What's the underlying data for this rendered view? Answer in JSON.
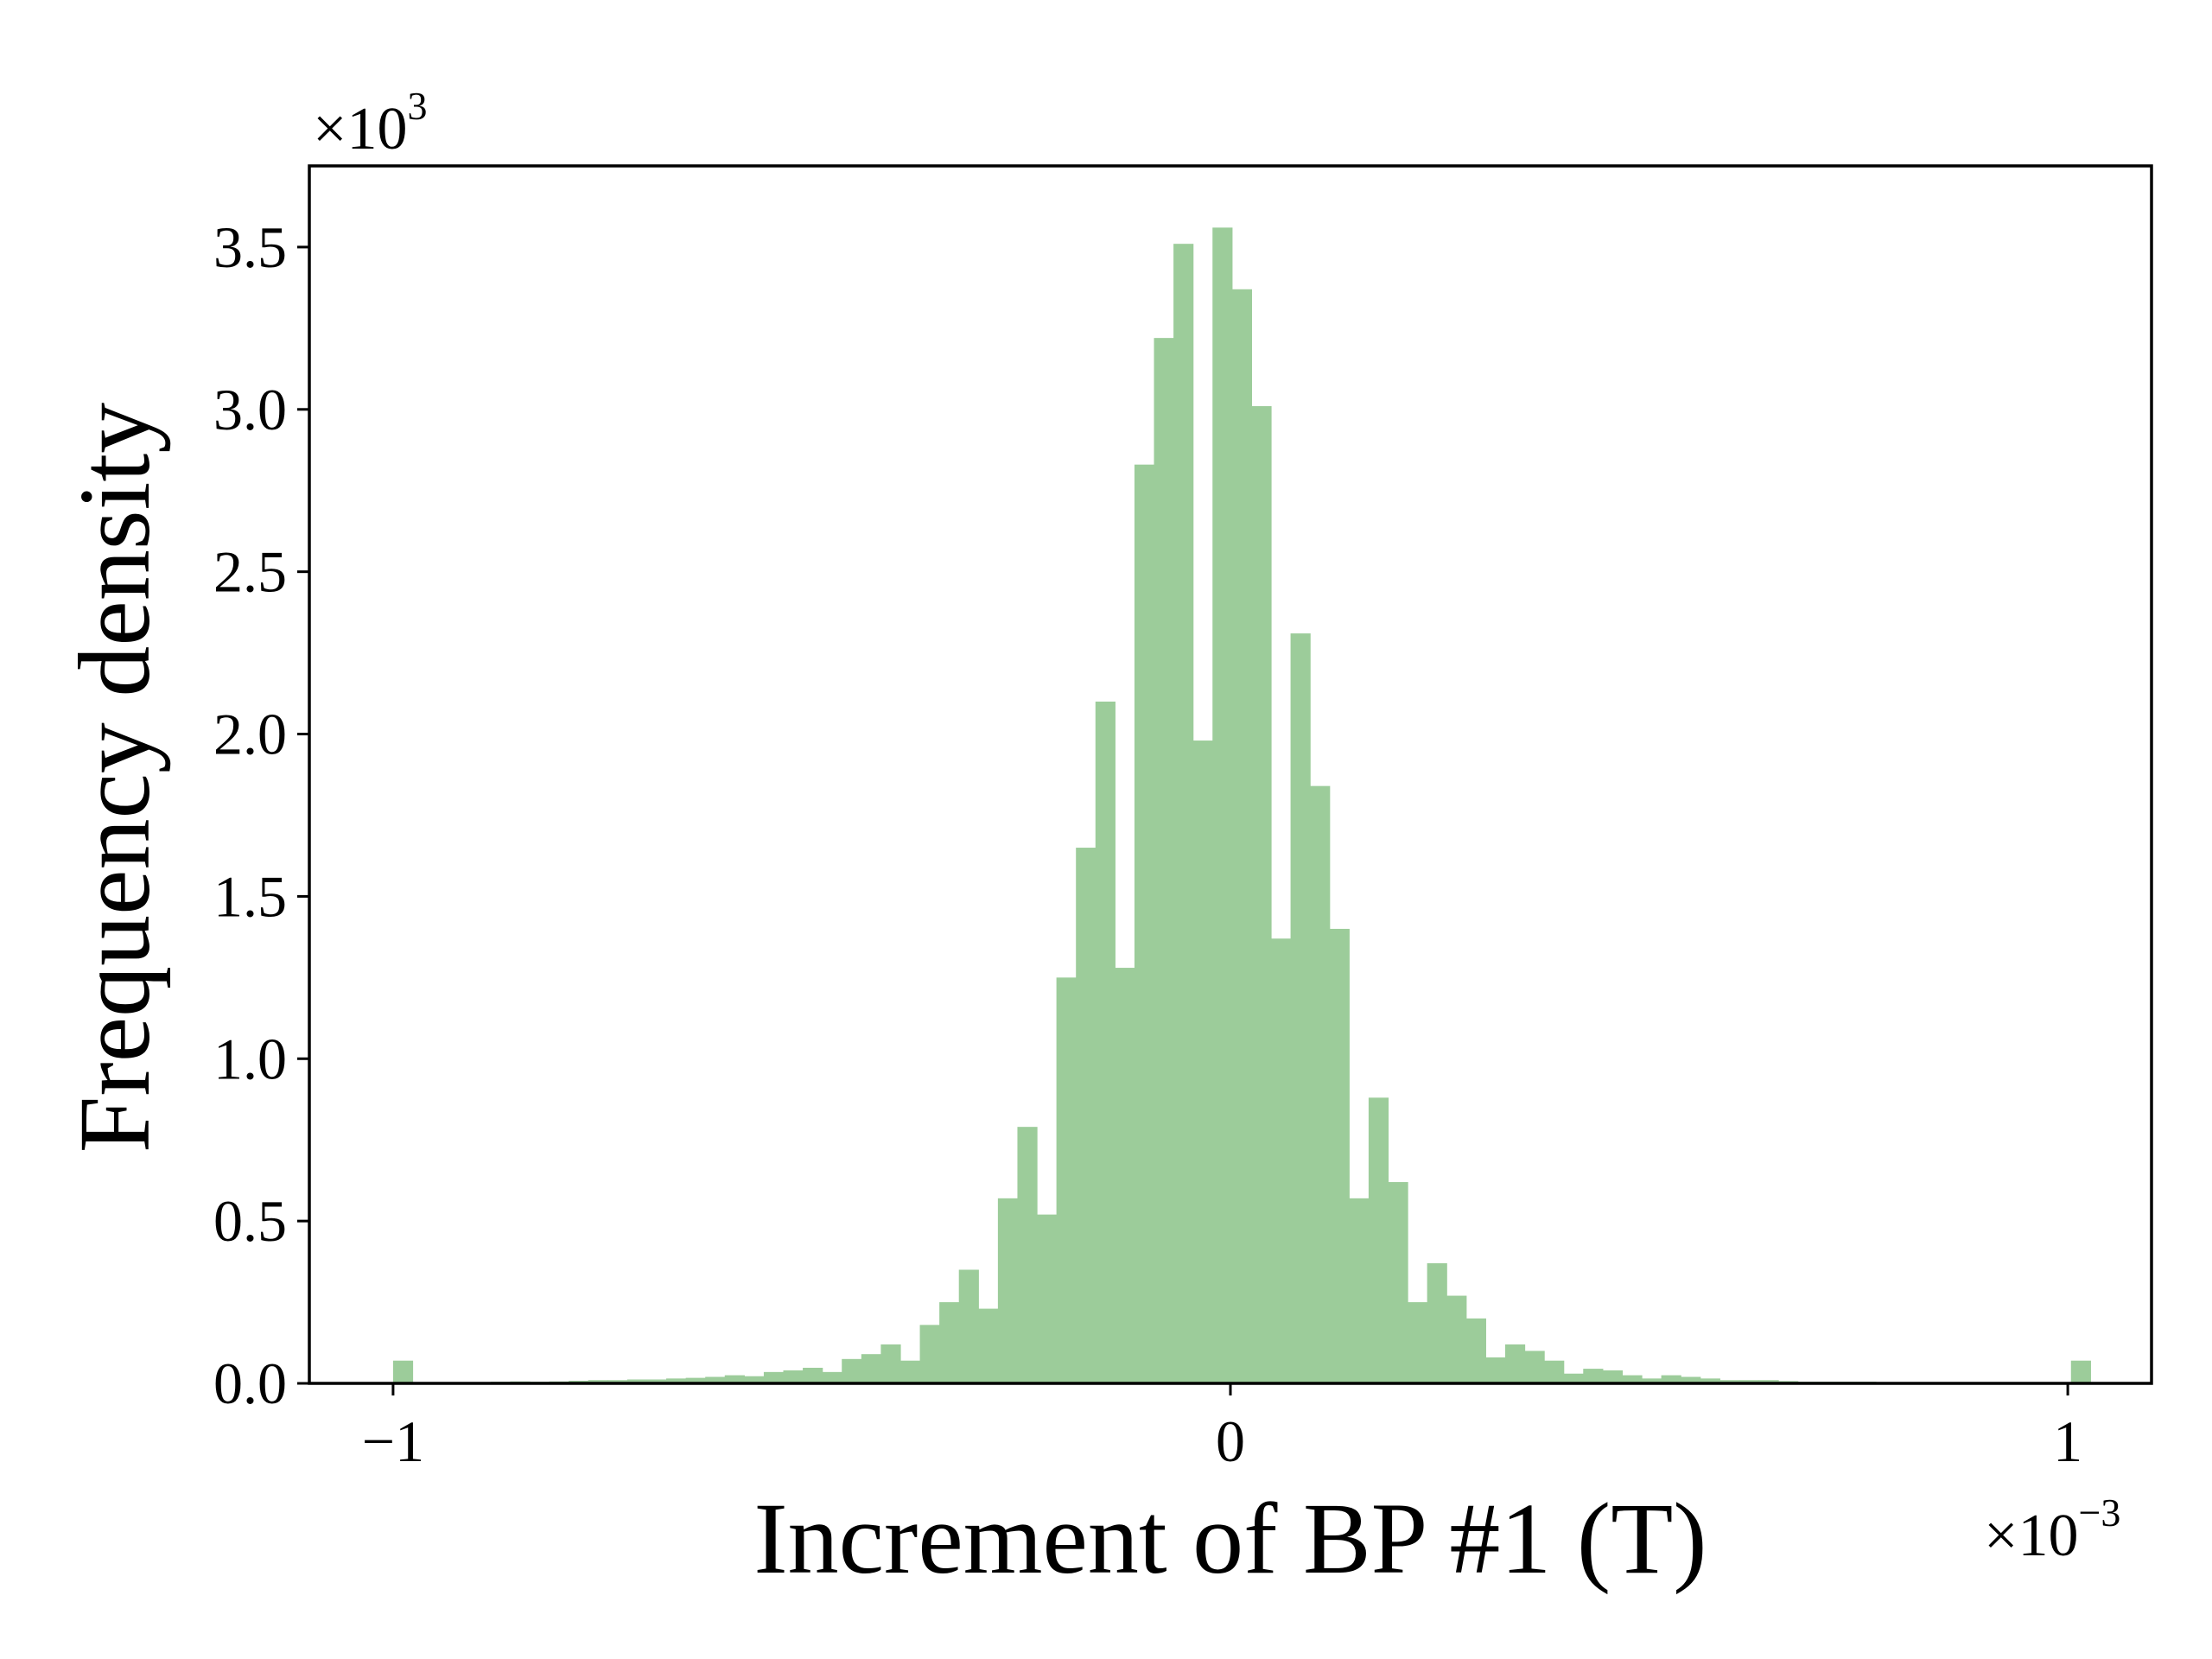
{
  "chart_data": {
    "type": "bar",
    "xlabel": "Increment of BP #1 (T)",
    "ylabel": "Frequency density",
    "x_multiplier": {
      "base": "×10",
      "exponent": "−3"
    },
    "y_multiplier": {
      "base": "×10",
      "exponent": "3"
    },
    "xlim": [
      -1.1,
      1.1
    ],
    "ylim": [
      0,
      3.75
    ],
    "xticks": [
      {
        "value": -1,
        "label": "−1"
      },
      {
        "value": 0,
        "label": "0"
      },
      {
        "value": 1,
        "label": "1"
      }
    ],
    "yticks": [
      {
        "value": 0.0,
        "label": "0.0"
      },
      {
        "value": 0.5,
        "label": "0.5"
      },
      {
        "value": 1.0,
        "label": "1.0"
      },
      {
        "value": 1.5,
        "label": "1.5"
      },
      {
        "value": 2.0,
        "label": "2.0"
      },
      {
        "value": 2.5,
        "label": "2.5"
      },
      {
        "value": 3.0,
        "label": "3.0"
      },
      {
        "value": 3.5,
        "label": "3.5"
      }
    ],
    "bar_color": "#9ccc9a",
    "bin_width": 0.0233,
    "bin_start": -1.0,
    "values": [
      0.07,
      0.004,
      0.004,
      0.004,
      0.004,
      0.005,
      0.006,
      0.005,
      0.006,
      0.008,
      0.01,
      0.01,
      0.012,
      0.012,
      0.015,
      0.017,
      0.02,
      0.025,
      0.022,
      0.035,
      0.04,
      0.048,
      0.035,
      0.075,
      0.09,
      0.12,
      0.07,
      0.18,
      0.25,
      0.35,
      0.23,
      0.57,
      0.79,
      0.52,
      1.25,
      1.65,
      2.1,
      1.28,
      2.83,
      3.22,
      3.51,
      1.98,
      3.56,
      3.37,
      3.01,
      1.37,
      2.31,
      1.84,
      1.4,
      0.57,
      0.88,
      0.62,
      0.25,
      0.37,
      0.27,
      0.2,
      0.08,
      0.12,
      0.1,
      0.07,
      0.03,
      0.045,
      0.04,
      0.025,
      0.015,
      0.025,
      0.02,
      0.015,
      0.01,
      0.01,
      0.01,
      0.007,
      0.005,
      0.005,
      0.005,
      0.005,
      0.004,
      0.004,
      0.004,
      0.004,
      0.003,
      0.003,
      0.003,
      0.003,
      0.003,
      0.003,
      0.07
    ]
  }
}
